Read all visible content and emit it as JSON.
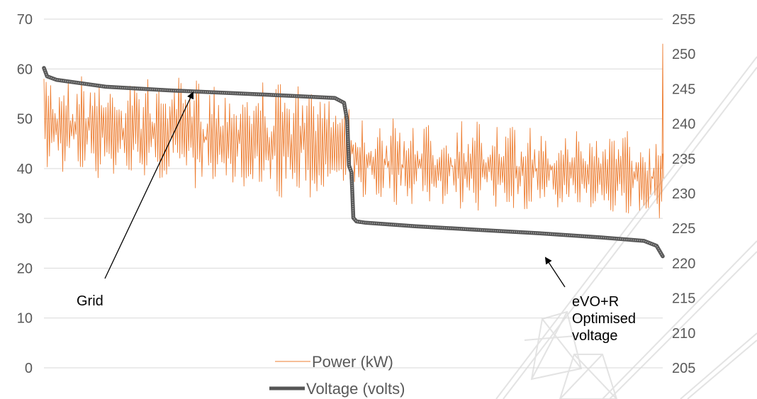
{
  "chart_data": {
    "type": "line",
    "title": "",
    "xlabel": "",
    "ylabel": "",
    "y_left": {
      "min": 0,
      "max": 70,
      "ticks": [
        0,
        10,
        20,
        30,
        40,
        50,
        60,
        70
      ]
    },
    "y_right": {
      "min": 205,
      "max": 255,
      "ticks": [
        205,
        210,
        215,
        220,
        225,
        230,
        235,
        240,
        245,
        250,
        255
      ]
    },
    "grid": true,
    "legend_position": "bottom-center",
    "series": [
      {
        "name": "Power (kW)",
        "axis": "left",
        "color": "#ED7D31",
        "envelope": {
          "segment1": {
            "x_start": 0,
            "x_end": 0.5,
            "low_start": 39,
            "low_end": 32,
            "high_start": 60,
            "high_end": 57
          },
          "segment2": {
            "x_start": 0.5,
            "x_end": 1,
            "low_start": 33,
            "low_end": 29,
            "high_start": 51,
            "high_end": 48
          },
          "final_spike": 65
        }
      },
      {
        "name": "Voltage (volts)",
        "axis": "right",
        "color": "#7F7F7F",
        "points": [
          [
            0.0,
            248.0
          ],
          [
            0.005,
            246.8
          ],
          [
            0.02,
            246.3
          ],
          [
            0.1,
            245.3
          ],
          [
            0.2,
            244.8
          ],
          [
            0.3,
            244.4
          ],
          [
            0.4,
            244.0
          ],
          [
            0.47,
            243.7
          ],
          [
            0.485,
            243.0
          ],
          [
            0.49,
            240.5
          ],
          [
            0.493,
            234.0
          ],
          [
            0.497,
            233.0
          ],
          [
            0.5,
            226.5
          ],
          [
            0.505,
            226.0
          ],
          [
            0.52,
            225.8
          ],
          [
            0.6,
            225.3
          ],
          [
            0.7,
            224.8
          ],
          [
            0.8,
            224.3
          ],
          [
            0.9,
            223.7
          ],
          [
            0.97,
            223.2
          ],
          [
            0.99,
            222.5
          ],
          [
            1.0,
            221.0
          ]
        ]
      }
    ],
    "annotations": [
      {
        "id": "grid",
        "text": [
          "Grid"
        ]
      },
      {
        "id": "evo",
        "text": [
          "eVO+R",
          "Optimised",
          "voltage"
        ]
      }
    ]
  }
}
